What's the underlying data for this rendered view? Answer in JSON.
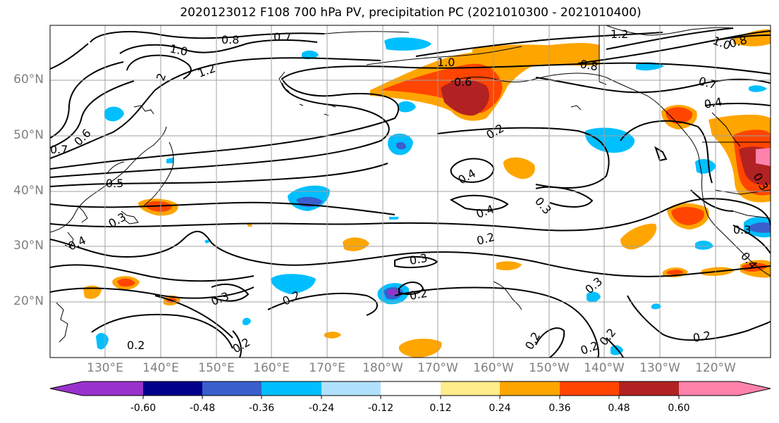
{
  "title": "2020123012 F108 700 hPa PV, precipitation PC (2021010300 - 2021010400)",
  "lat_labels": [
    "60°N",
    "50°N",
    "40°N",
    "30°N",
    "20°N"
  ],
  "lon_labels": [
    "130°E",
    "140°E",
    "150°E",
    "160°E",
    "170°E",
    "180°W",
    "170°W",
    "160°W",
    "150°W",
    "140°W",
    "130°W",
    "120°W"
  ],
  "colorbar": {
    "colors": [
      "#9932cc",
      "#00008b",
      "#3a5fcd",
      "#00bfff",
      "#b0e2ff",
      "#ffffff",
      "#ffec8b",
      "#ffa500",
      "#ff4500",
      "#b22222",
      "#ff82ab"
    ],
    "tick_labels": [
      "-0.60",
      "-0.48",
      "-0.36",
      "-0.24",
      "-0.12",
      "0.12",
      "0.24",
      "0.36",
      "0.48",
      "0.60"
    ]
  },
  "contour_labels": [
    "0.8",
    "0.7",
    "1.0",
    "1.2",
    "2",
    "0.6",
    "0.7",
    "0.5",
    "0.4",
    "0.3",
    "0.2",
    "0.3",
    "0.4",
    "0.4",
    "0.3",
    "0.2",
    "0.3",
    "0.2",
    "0.2",
    "0.2",
    "0.2",
    "0.2",
    "0.3",
    "0.2",
    "0.2",
    "0.2",
    "1.0",
    "0.6",
    "0.8",
    "1.2",
    "0.8",
    "1.0",
    "0.7",
    "0.4",
    "0.3",
    "0.4",
    "0.3"
  ]
}
